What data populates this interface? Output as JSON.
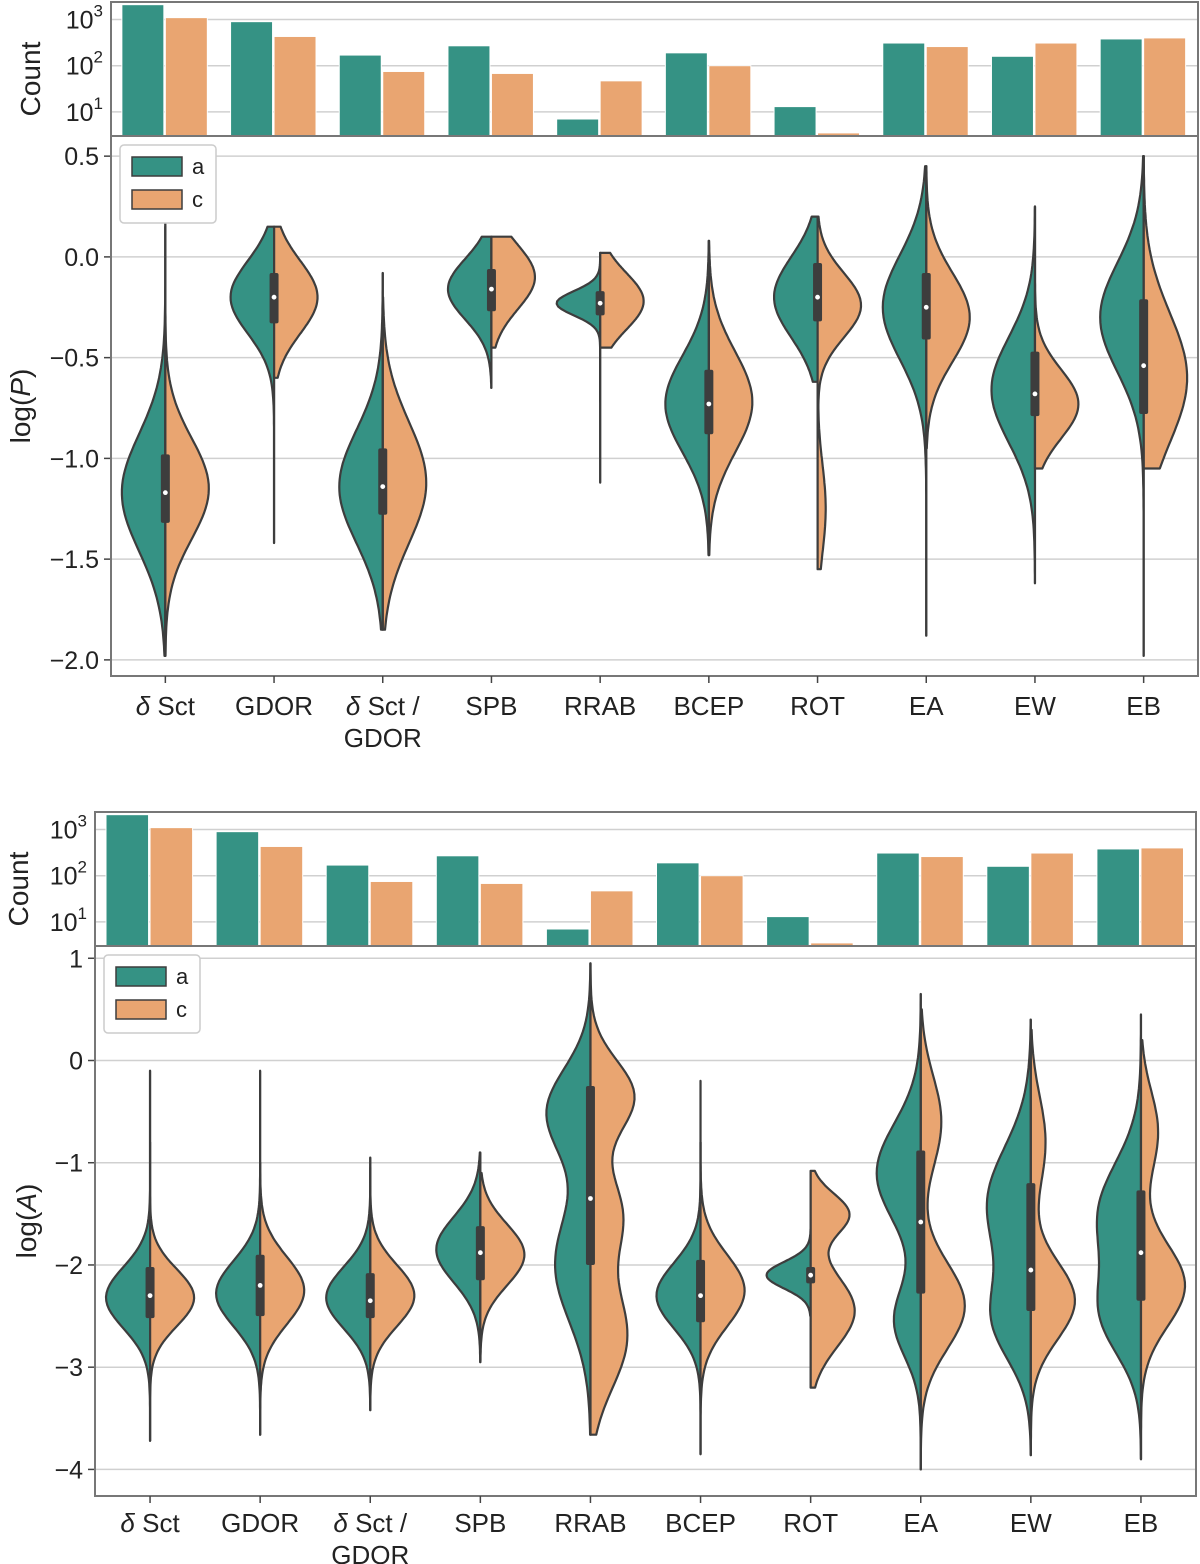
{
  "chart_data": [
    {
      "id": "period",
      "type": "violin",
      "categories": [
        "δ Sct",
        "GDOR",
        "δ Sct /\nGDOR",
        "SPB",
        "RRAB",
        "BCEP",
        "ROT",
        "EA",
        "EW",
        "EB"
      ],
      "ylabel_prefix": "log(",
      "ylabel_var": "P",
      "ylabel_suffix": ")",
      "ylim": [
        -2.08,
        0.6
      ],
      "yticks": [
        0.5,
        0.0,
        -0.5,
        -1.0,
        -1.5,
        -2.0
      ],
      "ytick_labels": [
        "0.5",
        "0.0",
        "−0.5",
        "−1.0",
        "−1.5",
        "−2.0"
      ],
      "legend": {
        "entries": [
          "a",
          "c"
        ],
        "placement": "upper-left"
      },
      "colors": {
        "a": "#359284",
        "c": "#e9a571"
      },
      "series": [
        {
          "name": "a",
          "violins": [
            {
              "min": -1.98,
              "max": 0.2,
              "q1": -1.32,
              "median": -1.17,
              "q3": -0.98,
              "modes": [
                [
                  -1.17,
                  0.29,
                  1
                ]
              ]
            },
            {
              "min": -1.42,
              "max": 0.15,
              "q1": -0.33,
              "median": -0.2,
              "q3": -0.08,
              "modes": [
                [
                  -0.2,
                  0.18,
                  1
                ]
              ]
            },
            {
              "min": -1.85,
              "max": -0.08,
              "q1": -1.28,
              "median": -1.14,
              "q3": -0.95,
              "modes": [
                [
                  -1.14,
                  0.28,
                  1
                ]
              ]
            },
            {
              "min": -0.65,
              "max": 0.1,
              "q1": -0.27,
              "median": -0.16,
              "q3": -0.06,
              "modes": [
                [
                  -0.16,
                  0.15,
                  1
                ]
              ]
            },
            {
              "min": -1.12,
              "max": 0.02,
              "q1": -0.29,
              "median": -0.23,
              "q3": -0.17,
              "modes": [
                [
                  -0.23,
                  0.06,
                  1
                ]
              ]
            },
            {
              "min": -1.48,
              "max": 0.08,
              "q1": -0.88,
              "median": -0.73,
              "q3": -0.56,
              "modes": [
                [
                  -0.73,
                  0.24,
                  1
                ]
              ]
            },
            {
              "min": -0.62,
              "max": 0.2,
              "q1": -0.32,
              "median": -0.2,
              "q3": -0.03,
              "modes": [
                [
                  -0.2,
                  0.2,
                  1
                ]
              ]
            },
            {
              "min": -1.88,
              "max": 0.45,
              "q1": -0.41,
              "median": -0.25,
              "q3": -0.08,
              "modes": [
                [
                  -0.25,
                  0.26,
                  1
                ]
              ]
            },
            {
              "min": -1.62,
              "max": 0.25,
              "q1": -0.79,
              "median": -0.68,
              "q3": -0.47,
              "modes": [
                [
                  -0.66,
                  0.26,
                  1
                ]
              ]
            },
            {
              "min": -1.98,
              "max": 0.5,
              "q1": -0.78,
              "median": -0.54,
              "q3": -0.21,
              "modes": [
                [
                  -0.3,
                  0.27,
                  1
                ]
              ]
            }
          ]
        },
        {
          "name": "c",
          "violins": [
            {
              "min": -1.98,
              "max": 0.15,
              "q1": -1.32,
              "median": -1.17,
              "q3": -0.98,
              "modes": [
                [
                  -1.15,
                  0.25,
                  1
                ]
              ]
            },
            {
              "min": -0.6,
              "max": 0.15,
              "q1": -0.33,
              "median": -0.2,
              "q3": -0.08,
              "modes": [
                [
                  -0.2,
                  0.18,
                  1
                ]
              ]
            },
            {
              "min": -1.85,
              "max": -0.2,
              "q1": -1.28,
              "median": -1.14,
              "q3": -0.95,
              "modes": [
                [
                  -1.12,
                  0.3,
                  1
                ]
              ]
            },
            {
              "min": -0.45,
              "max": 0.1,
              "q1": -0.27,
              "median": -0.16,
              "q3": -0.06,
              "modes": [
                [
                  -0.1,
                  0.16,
                  1
                ]
              ]
            },
            {
              "min": -0.45,
              "max": 0.02,
              "q1": -0.29,
              "median": -0.23,
              "q3": -0.17,
              "modes": [
                [
                  -0.22,
                  0.14,
                  1
                ]
              ]
            },
            {
              "min": -1.48,
              "max": 0.08,
              "q1": -0.88,
              "median": -0.73,
              "q3": -0.56,
              "modes": [
                [
                  -0.72,
                  0.25,
                  1
                ]
              ]
            },
            {
              "min": -1.55,
              "max": 0.2,
              "q1": -0.32,
              "median": -0.2,
              "q3": -0.03,
              "modes": [
                [
                  -0.24,
                  0.16,
                  0.8
                ],
                [
                  -1.25,
                  0.22,
                  0.15
                ]
              ]
            },
            {
              "min": -0.95,
              "max": 0.45,
              "q1": -0.41,
              "median": -0.25,
              "q3": -0.08,
              "modes": [
                [
                  -0.3,
                  0.22,
                  1
                ]
              ]
            },
            {
              "min": -1.05,
              "max": 0.25,
              "q1": -0.79,
              "median": -0.68,
              "q3": -0.47,
              "modes": [
                [
                  -0.73,
                  0.17,
                  1
                ]
              ]
            },
            {
              "min": -1.05,
              "max": 0.5,
              "q1": -0.78,
              "median": -0.54,
              "q3": -0.21,
              "modes": [
                [
                  -0.6,
                  0.32,
                  1
                ]
              ]
            }
          ]
        }
      ]
    },
    {
      "id": "period-counts",
      "type": "bar",
      "ylabel": "Count",
      "yscale": "log",
      "ylim": [
        3,
        2400
      ],
      "yticks": [
        10,
        100,
        1000
      ],
      "ytick_exponents": [
        "1",
        "2",
        "3"
      ],
      "tick_base": "10",
      "categories": [
        "δ Sct",
        "GDOR",
        "δ Sct / GDOR",
        "SPB",
        "RRAB",
        "BCEP",
        "ROT",
        "EA",
        "EW",
        "EB"
      ],
      "series": [
        {
          "name": "a",
          "values": [
            2100,
            900,
            170,
            270,
            7,
            190,
            13,
            310,
            160,
            380
          ]
        },
        {
          "name": "c",
          "values": [
            1100,
            430,
            75,
            68,
            47,
            100,
            3.5,
            260,
            310,
            400
          ]
        }
      ]
    },
    {
      "id": "amplitude",
      "type": "violin",
      "categories": [
        "δ Sct",
        "GDOR",
        "δ Sct /\nGDOR",
        "SPB",
        "RRAB",
        "BCEP",
        "ROT",
        "EA",
        "EW",
        "EB"
      ],
      "ylabel_prefix": "log(",
      "ylabel_var": "A",
      "ylabel_suffix": ")",
      "ylim": [
        -4.26,
        1.12
      ],
      "yticks": [
        1,
        0,
        -1,
        -2,
        -3,
        -4
      ],
      "ytick_labels": [
        "1",
        "0",
        "−1",
        "−2",
        "−3",
        "−4"
      ],
      "legend": {
        "entries": [
          "a",
          "c"
        ],
        "placement": "upper-left"
      },
      "colors": {
        "a": "#359284",
        "c": "#e9a571"
      },
      "series": [
        {
          "name": "a",
          "violins": [
            {
              "min": -3.72,
              "max": -0.1,
              "q1": -2.52,
              "median": -2.3,
              "q3": -2.02,
              "modes": [
                [
                  -2.32,
                  0.3,
                  1
                ]
              ]
            },
            {
              "min": -3.66,
              "max": -0.1,
              "q1": -2.5,
              "median": -2.2,
              "q3": -1.9,
              "modes": [
                [
                  -2.28,
                  0.32,
                  1
                ]
              ]
            },
            {
              "min": -3.42,
              "max": -0.95,
              "q1": -2.52,
              "median": -2.35,
              "q3": -2.08,
              "modes": [
                [
                  -2.32,
                  0.3,
                  1
                ]
              ]
            },
            {
              "min": -2.95,
              "max": -0.9,
              "q1": -2.15,
              "median": -1.88,
              "q3": -1.62,
              "modes": [
                [
                  -1.85,
                  0.32,
                  1
                ]
              ]
            },
            {
              "min": -3.66,
              "max": 0.95,
              "q1": -2.0,
              "median": -1.35,
              "q3": -0.25,
              "modes": [
                [
                  -0.5,
                  0.42,
                  0.55
                ],
                [
                  -2.0,
                  0.55,
                  0.45
                ]
              ]
            },
            {
              "min": -3.85,
              "max": -0.2,
              "q1": -2.56,
              "median": -2.3,
              "q3": -1.95,
              "modes": [
                [
                  -2.3,
                  0.32,
                  1
                ]
              ]
            },
            {
              "min": -2.5,
              "max": -1.5,
              "q1": -2.18,
              "median": -2.1,
              "q3": -2.02,
              "modes": [
                [
                  -2.1,
                  0.13,
                  1
                ]
              ]
            },
            {
              "min": -4.0,
              "max": 0.65,
              "q1": -2.28,
              "median": -1.58,
              "q3": -0.88,
              "modes": [
                [
                  -1.1,
                  0.48,
                  0.75
                ],
                [
                  -2.55,
                  0.35,
                  0.45
                ]
              ]
            },
            {
              "min": -3.86,
              "max": 0.4,
              "q1": -2.45,
              "median": -2.05,
              "q3": -1.2,
              "modes": [
                [
                  -1.4,
                  0.55,
                  0.75
                ],
                [
                  -2.55,
                  0.4,
                  0.6
                ]
              ]
            },
            {
              "min": -3.9,
              "max": 0.45,
              "q1": -2.35,
              "median": -1.88,
              "q3": -1.27,
              "modes": [
                [
                  -1.5,
                  0.5,
                  0.7
                ],
                [
                  -2.5,
                  0.4,
                  0.6
                ]
              ]
            }
          ]
        },
        {
          "name": "c",
          "violins": [
            {
              "min": -3.72,
              "max": -0.8,
              "q1": -2.52,
              "median": -2.3,
              "q3": -2.02,
              "modes": [
                [
                  -2.32,
                  0.28,
                  1
                ]
              ]
            },
            {
              "min": -3.66,
              "max": -1.0,
              "q1": -2.5,
              "median": -2.2,
              "q3": -1.9,
              "modes": [
                [
                  -2.25,
                  0.33,
                  1
                ]
              ]
            },
            {
              "min": -3.42,
              "max": -1.05,
              "q1": -2.52,
              "median": -2.35,
              "q3": -2.08,
              "modes": [
                [
                  -2.3,
                  0.3,
                  1
                ]
              ]
            },
            {
              "min": -2.95,
              "max": -1.1,
              "q1": -2.15,
              "median": -1.88,
              "q3": -1.62,
              "modes": [
                [
                  -1.9,
                  0.3,
                  1
                ]
              ]
            },
            {
              "min": -3.66,
              "max": 0.95,
              "q1": -2.0,
              "median": -1.35,
              "q3": -0.25,
              "modes": [
                [
                  -0.35,
                  0.35,
                  0.5
                ],
                [
                  -1.5,
                  0.4,
                  0.35
                ],
                [
                  -2.7,
                  0.5,
                  0.42
                ]
              ]
            },
            {
              "min": -3.85,
              "max": -0.8,
              "q1": -2.56,
              "median": -2.3,
              "q3": -1.95,
              "modes": [
                [
                  -2.25,
                  0.35,
                  1
                ]
              ]
            },
            {
              "min": -3.2,
              "max": -1.08,
              "q1": -2.18,
              "median": -2.1,
              "q3": -2.02,
              "modes": [
                [
                  -1.5,
                  0.2,
                  0.6
                ],
                [
                  -2.45,
                  0.35,
                  0.7
                ]
              ]
            },
            {
              "min": -4.0,
              "max": 0.5,
              "q1": -2.28,
              "median": -1.58,
              "q3": -0.88,
              "modes": [
                [
                  -0.6,
                  0.45,
                  0.35
                ],
                [
                  -2.4,
                  0.42,
                  0.75
                ]
              ]
            },
            {
              "min": -3.86,
              "max": 0.3,
              "q1": -2.45,
              "median": -2.05,
              "q3": -1.2,
              "modes": [
                [
                  -2.35,
                  0.38,
                  0.9
                ],
                [
                  -0.8,
                  0.45,
                  0.3
                ]
              ]
            },
            {
              "min": -3.9,
              "max": 0.2,
              "q1": -2.35,
              "median": -1.88,
              "q3": -1.27,
              "modes": [
                [
                  -2.2,
                  0.4,
                  0.9
                ],
                [
                  -0.7,
                  0.4,
                  0.35
                ]
              ]
            }
          ]
        }
      ]
    },
    {
      "id": "amplitude-counts",
      "type": "bar",
      "ylabel": "Count",
      "yscale": "log",
      "ylim": [
        3,
        2400
      ],
      "yticks": [
        10,
        100,
        1000
      ],
      "ytick_exponents": [
        "1",
        "2",
        "3"
      ],
      "tick_base": "10",
      "categories": [
        "δ Sct",
        "GDOR",
        "δ Sct / GDOR",
        "SPB",
        "RRAB",
        "BCEP",
        "ROT",
        "EA",
        "EW",
        "EB"
      ],
      "series": [
        {
          "name": "a",
          "values": [
            2100,
            900,
            170,
            270,
            7,
            190,
            13,
            310,
            160,
            380
          ]
        },
        {
          "name": "c",
          "values": [
            1100,
            430,
            75,
            68,
            47,
            100,
            3.5,
            260,
            310,
            400
          ]
        }
      ]
    }
  ]
}
